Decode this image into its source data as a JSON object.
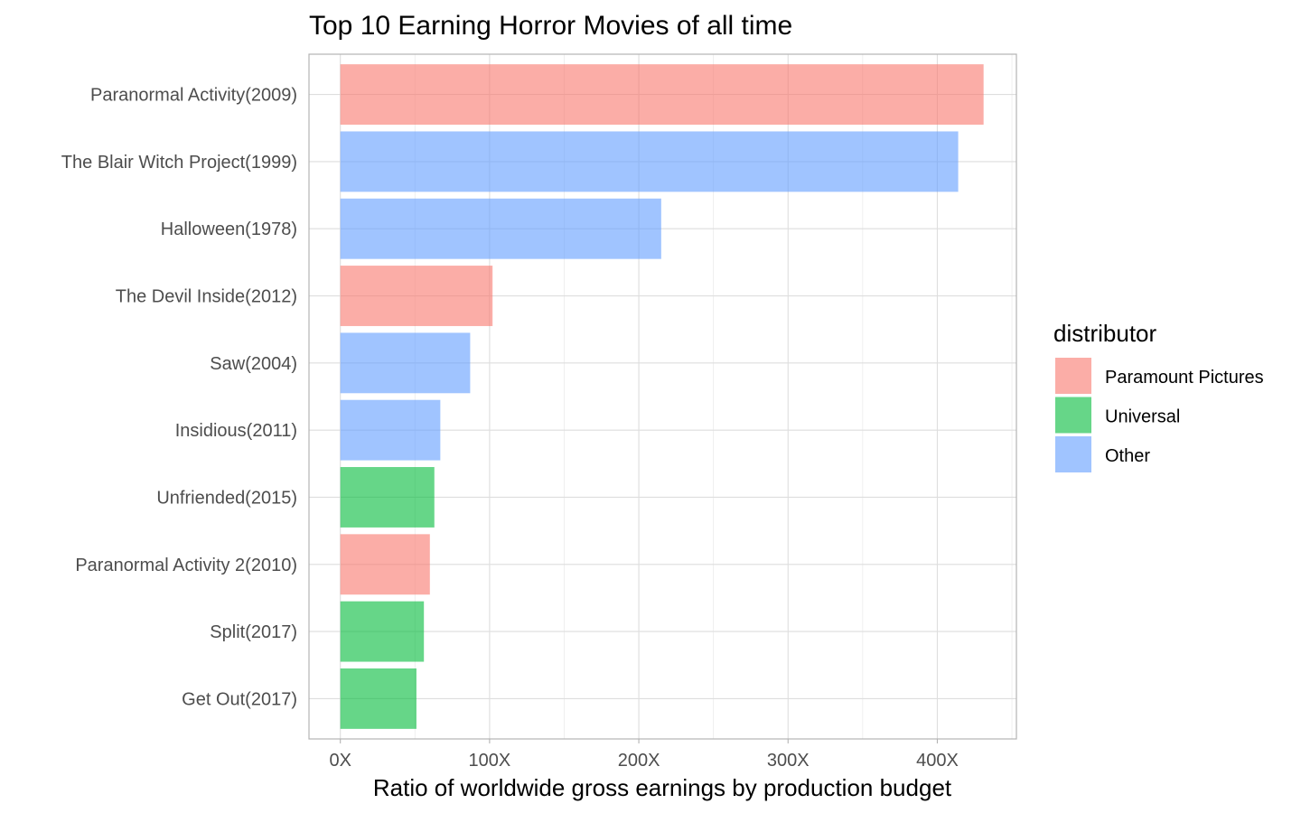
{
  "chart_data": {
    "type": "bar",
    "orientation": "horizontal",
    "title": "Top 10 Earning Horror Movies of all time",
    "xlabel": "Ratio of worldwide gross earnings by production budget",
    "ylabel": "",
    "xlim": [
      -21,
      453
    ],
    "x_ticks": [
      {
        "value": 0,
        "label": "0X"
      },
      {
        "value": 100,
        "label": "100X"
      },
      {
        "value": 200,
        "label": "200X"
      },
      {
        "value": 300,
        "label": "300X"
      },
      {
        "value": 400,
        "label": "400X"
      }
    ],
    "grid": true,
    "legend": {
      "title": "distributor",
      "position": "right",
      "entries": [
        {
          "name": "Paramount Pictures",
          "color": "#f8766d"
        },
        {
          "name": "Universal",
          "color": "#00ba38"
        },
        {
          "name": "Other",
          "color": "#619cff"
        }
      ]
    },
    "bars": [
      {
        "category": "Paranormal Activity(2009)",
        "value": 431,
        "distributor": "Paramount Pictures"
      },
      {
        "category": "The Blair Witch Project(1999)",
        "value": 414,
        "distributor": "Other"
      },
      {
        "category": "Halloween(1978)",
        "value": 215,
        "distributor": "Other"
      },
      {
        "category": "The Devil Inside(2012)",
        "value": 102,
        "distributor": "Paramount Pictures"
      },
      {
        "category": "Saw(2004)",
        "value": 87,
        "distributor": "Other"
      },
      {
        "category": "Insidious(2011)",
        "value": 67,
        "distributor": "Other"
      },
      {
        "category": "Unfriended(2015)",
        "value": 63,
        "distributor": "Universal"
      },
      {
        "category": "Paranormal Activity 2(2010)",
        "value": 60,
        "distributor": "Paramount Pictures"
      },
      {
        "category": "Split(2017)",
        "value": 56,
        "distributor": "Universal"
      },
      {
        "category": "Get Out(2017)",
        "value": 51,
        "distributor": "Universal"
      }
    ]
  }
}
